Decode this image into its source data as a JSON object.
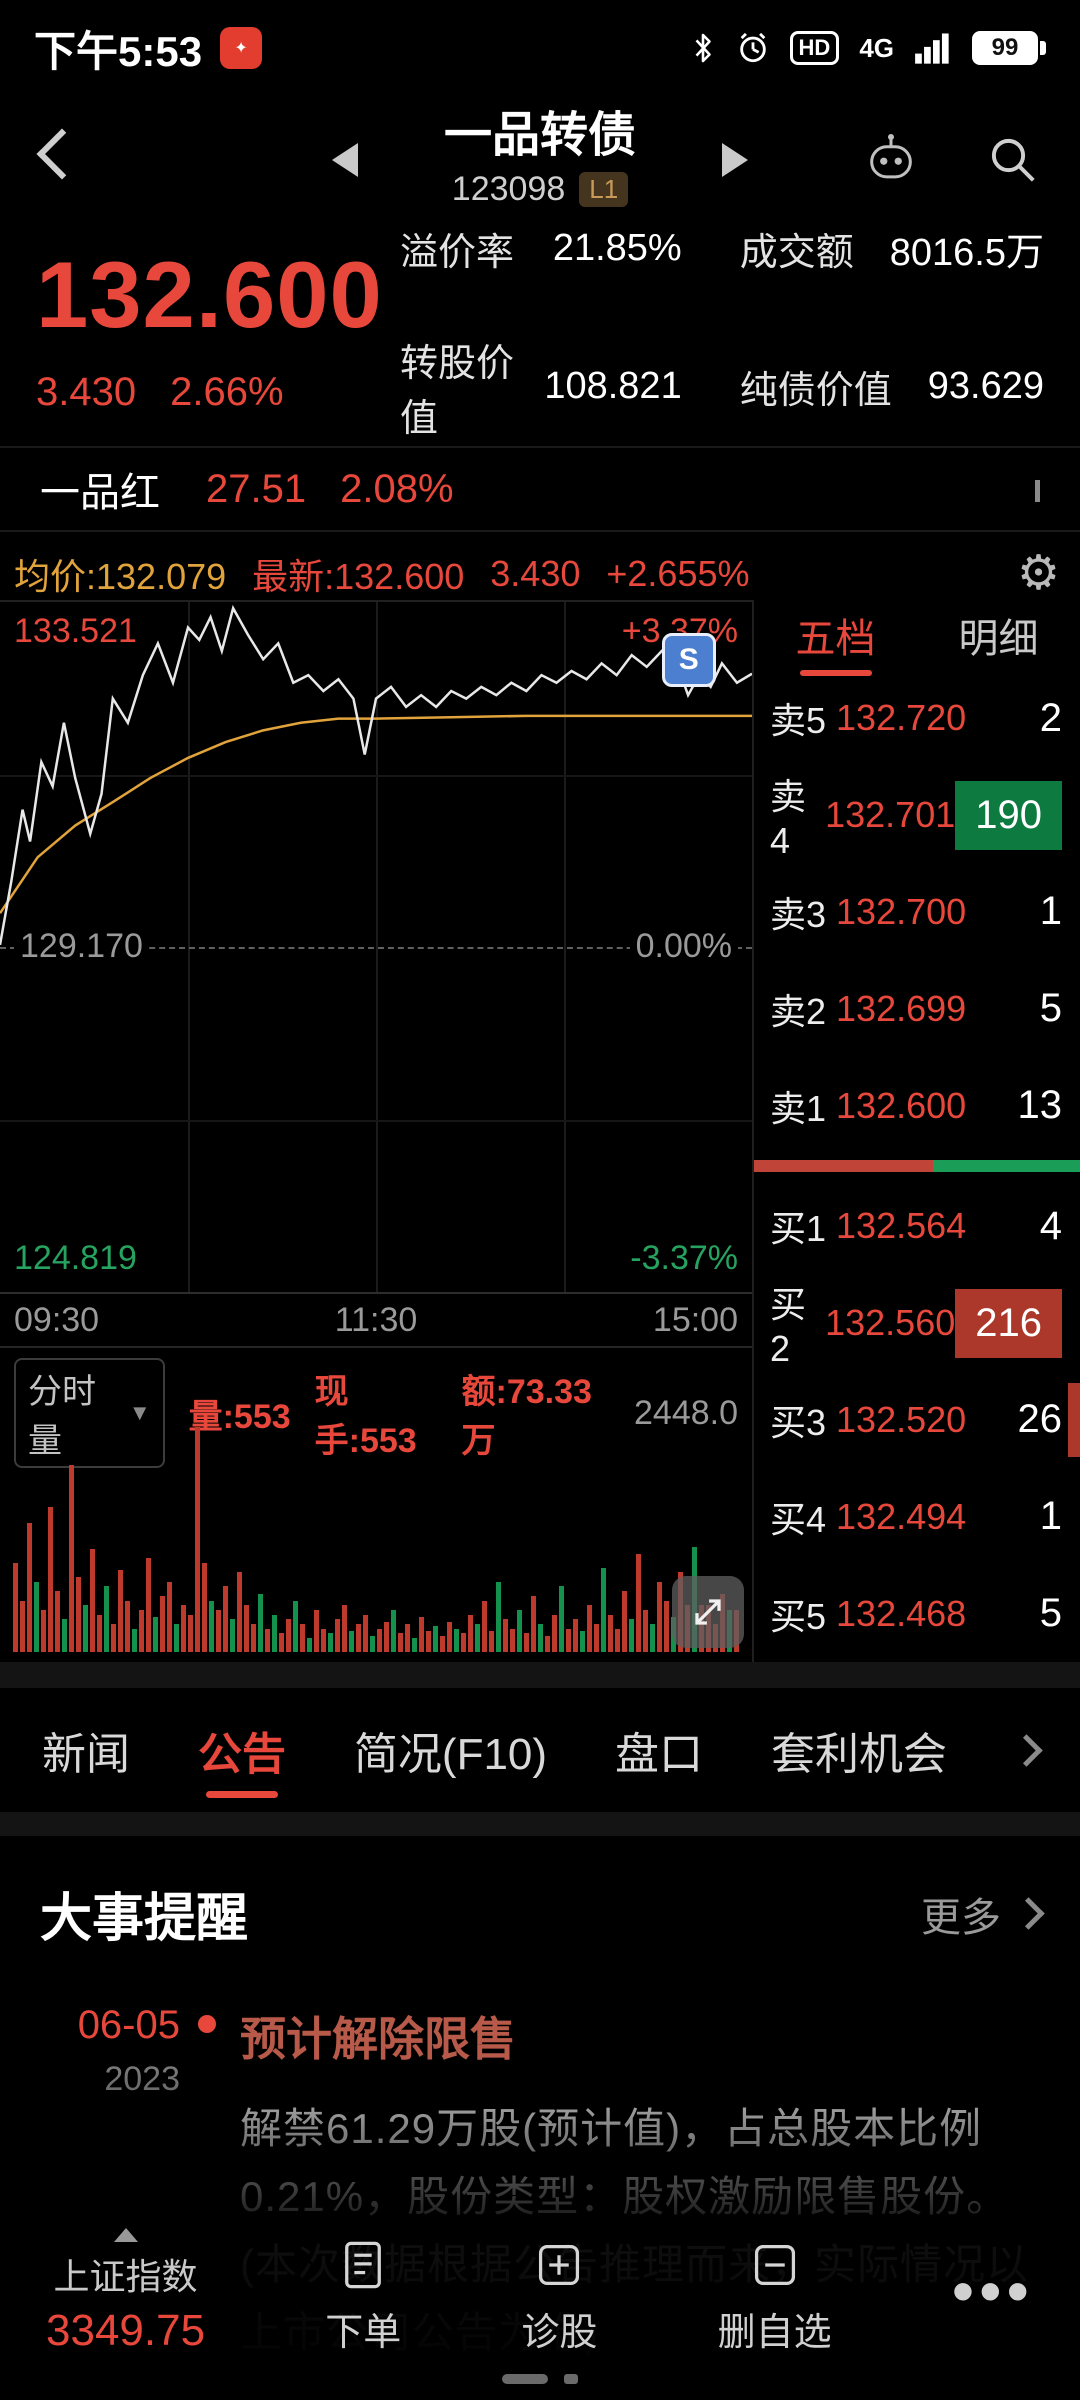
{
  "status_bar": {
    "time": "下午5:53",
    "network": "4G",
    "battery": "99"
  },
  "header": {
    "title": "一品转债",
    "code": "123098",
    "badge": "L1"
  },
  "quote": {
    "price": "132.600",
    "change": "3.430",
    "change_pct": "2.66%",
    "stats": [
      {
        "label": "溢价率",
        "value": "21.85%"
      },
      {
        "label": "成交额",
        "value": "8016.5万"
      },
      {
        "label": "转股价值",
        "value": "108.821"
      },
      {
        "label": "纯债价值",
        "value": "93.629"
      }
    ]
  },
  "related": {
    "name": "一品红",
    "price": "27.51",
    "change_pct": "2.08%"
  },
  "chart": {
    "avg_label": "均价:132.079",
    "latest_label": "最新:132.600",
    "change": "3.430",
    "change_pct": "+2.655%",
    "high": "133.521",
    "high_pct": "+3.37%",
    "mid": "129.170",
    "mid_pct": "0.00%",
    "low": "124.819",
    "low_pct": "-3.37%",
    "times": [
      "09:30",
      "11:30",
      "15:00"
    ],
    "marker": "S",
    "price_points": [
      [
        0,
        49.7
      ],
      [
        1.5,
        40.5
      ],
      [
        3,
        30.1
      ],
      [
        4,
        34.7
      ],
      [
        5.5,
        23.2
      ],
      [
        7,
        26.7
      ],
      [
        8.5,
        17.5
      ],
      [
        10,
        25.5
      ],
      [
        12,
        33.6
      ],
      [
        13.5,
        27.8
      ],
      [
        15,
        14
      ],
      [
        17,
        17.5
      ],
      [
        19,
        10.6
      ],
      [
        21,
        6
      ],
      [
        23,
        11.7
      ],
      [
        25,
        3.7
      ],
      [
        26.5,
        5.5
      ],
      [
        28,
        2.2
      ],
      [
        29.5,
        7.1
      ],
      [
        31,
        0.9
      ],
      [
        33,
        4.8
      ],
      [
        35,
        8.3
      ],
      [
        37,
        6
      ],
      [
        39,
        11.7
      ],
      [
        41,
        10.6
      ],
      [
        43,
        12.9
      ],
      [
        45,
        11.2
      ],
      [
        47,
        14
      ],
      [
        48.5,
        22.1
      ],
      [
        50,
        14
      ],
      [
        52,
        12.3
      ],
      [
        54,
        15.2
      ],
      [
        56,
        13.5
      ],
      [
        58,
        15.2
      ],
      [
        60,
        12.9
      ],
      [
        62,
        14
      ],
      [
        64,
        12.3
      ],
      [
        66,
        13.5
      ],
      [
        68,
        11.7
      ],
      [
        70,
        12.9
      ],
      [
        72,
        10.6
      ],
      [
        74,
        11.7
      ],
      [
        76,
        10
      ],
      [
        78,
        11.2
      ],
      [
        80,
        8.9
      ],
      [
        82,
        10.6
      ],
      [
        84,
        7.7
      ],
      [
        86,
        9.4
      ],
      [
        88,
        7.1
      ],
      [
        90,
        8.9
      ],
      [
        91.5,
        13.5
      ],
      [
        93,
        10.6
      ],
      [
        94.5,
        12.3
      ],
      [
        96,
        8.9
      ],
      [
        98,
        11.7
      ],
      [
        100,
        10.4
      ]
    ],
    "avg_points": [
      [
        0,
        45.1
      ],
      [
        5,
        37
      ],
      [
        10,
        32.4
      ],
      [
        15,
        29
      ],
      [
        20,
        25.5
      ],
      [
        25,
        22.6
      ],
      [
        30,
        20.3
      ],
      [
        35,
        18.6
      ],
      [
        40,
        17.5
      ],
      [
        45,
        16.9
      ],
      [
        50,
        16.9
      ],
      [
        60,
        16.7
      ],
      [
        70,
        16.5
      ],
      [
        80,
        16.5
      ],
      [
        90,
        16.5
      ],
      [
        100,
        16.5
      ]
    ]
  },
  "order_book": {
    "tabs": [
      {
        "label": "五档",
        "active": true
      },
      {
        "label": "明细",
        "active": false
      }
    ],
    "asks": [
      {
        "label": "卖5",
        "price": "132.720",
        "qty": "2"
      },
      {
        "label": "卖4",
        "price": "132.701",
        "qty": "190",
        "hl": "green"
      },
      {
        "label": "卖3",
        "price": "132.700",
        "qty": "1"
      },
      {
        "label": "卖2",
        "price": "132.699",
        "qty": "5"
      },
      {
        "label": "卖1",
        "price": "132.600",
        "qty": "13"
      }
    ],
    "bids": [
      {
        "label": "买1",
        "price": "132.564",
        "qty": "4"
      },
      {
        "label": "买2",
        "price": "132.560",
        "qty": "216",
        "hl": "red"
      },
      {
        "label": "买3",
        "price": "132.520",
        "qty": "26",
        "row_hl": "sliver"
      },
      {
        "label": "买4",
        "price": "132.494",
        "qty": "1"
      },
      {
        "label": "买5",
        "price": "132.468",
        "qty": "5"
      }
    ]
  },
  "volume": {
    "mode": "分时量",
    "vol": "量:553",
    "hand": "现手:553",
    "amount": "额:73.33万",
    "scale": "2448.0",
    "bars": [
      [
        38,
        "r"
      ],
      [
        22,
        "r"
      ],
      [
        55,
        "r"
      ],
      [
        30,
        "g"
      ],
      [
        18,
        "r"
      ],
      [
        62,
        "r"
      ],
      [
        26,
        "r"
      ],
      [
        14,
        "g"
      ],
      [
        80,
        "r"
      ],
      [
        32,
        "r"
      ],
      [
        20,
        "g"
      ],
      [
        44,
        "r"
      ],
      [
        16,
        "r"
      ],
      [
        28,
        "g"
      ],
      [
        12,
        "r"
      ],
      [
        35,
        "r"
      ],
      [
        22,
        "r"
      ],
      [
        10,
        "g"
      ],
      [
        18,
        "r"
      ],
      [
        40,
        "r"
      ],
      [
        15,
        "g"
      ],
      [
        24,
        "r"
      ],
      [
        30,
        "r"
      ],
      [
        12,
        "g"
      ],
      [
        20,
        "r"
      ],
      [
        16,
        "r"
      ],
      [
        96,
        "r"
      ],
      [
        38,
        "r"
      ],
      [
        22,
        "g"
      ],
      [
        18,
        "r"
      ],
      [
        28,
        "r"
      ],
      [
        14,
        "g"
      ],
      [
        34,
        "r"
      ],
      [
        20,
        "r"
      ],
      [
        12,
        "r"
      ],
      [
        25,
        "g"
      ],
      [
        10,
        "r"
      ],
      [
        16,
        "g"
      ],
      [
        8,
        "r"
      ],
      [
        14,
        "r"
      ],
      [
        22,
        "g"
      ],
      [
        12,
        "r"
      ],
      [
        6,
        "g"
      ],
      [
        18,
        "r"
      ],
      [
        10,
        "r"
      ],
      [
        8,
        "g"
      ],
      [
        14,
        "r"
      ],
      [
        20,
        "r"
      ],
      [
        9,
        "g"
      ],
      [
        12,
        "r"
      ],
      [
        16,
        "r"
      ],
      [
        7,
        "g"
      ],
      [
        10,
        "r"
      ],
      [
        13,
        "r"
      ],
      [
        18,
        "g"
      ],
      [
        8,
        "r"
      ],
      [
        12,
        "r"
      ],
      [
        6,
        "g"
      ],
      [
        15,
        "r"
      ],
      [
        9,
        "r"
      ],
      [
        11,
        "g"
      ],
      [
        7,
        "r"
      ],
      [
        13,
        "r"
      ],
      [
        10,
        "g"
      ],
      [
        8,
        "r"
      ],
      [
        16,
        "r"
      ],
      [
        12,
        "g"
      ],
      [
        22,
        "r"
      ],
      [
        9,
        "r"
      ],
      [
        30,
        "g"
      ],
      [
        14,
        "r"
      ],
      [
        10,
        "r"
      ],
      [
        18,
        "g"
      ],
      [
        8,
        "r"
      ],
      [
        24,
        "r"
      ],
      [
        12,
        "g"
      ],
      [
        7,
        "r"
      ],
      [
        16,
        "r"
      ],
      [
        28,
        "g"
      ],
      [
        10,
        "r"
      ],
      [
        14,
        "r"
      ],
      [
        9,
        "g"
      ],
      [
        20,
        "r"
      ],
      [
        12,
        "r"
      ],
      [
        36,
        "g"
      ],
      [
        16,
        "r"
      ],
      [
        10,
        "r"
      ],
      [
        26,
        "r"
      ],
      [
        14,
        "g"
      ],
      [
        42,
        "r"
      ],
      [
        18,
        "r"
      ],
      [
        12,
        "g"
      ],
      [
        30,
        "r"
      ],
      [
        22,
        "r"
      ],
      [
        15,
        "g"
      ],
      [
        34,
        "r"
      ],
      [
        20,
        "r"
      ],
      [
        45,
        "g"
      ],
      [
        20,
        "r"
      ],
      [
        20,
        "r"
      ],
      [
        12,
        "r"
      ],
      [
        25,
        "r"
      ],
      [
        18,
        "g"
      ],
      [
        18,
        "r"
      ]
    ]
  },
  "tabs": {
    "items": [
      {
        "label": "新闻",
        "active": false
      },
      {
        "label": "公告",
        "active": true
      },
      {
        "label": "简况(F10)",
        "active": false
      },
      {
        "label": "盘口",
        "active": false
      },
      {
        "label": "套利机会",
        "active": false
      }
    ]
  },
  "news": {
    "section_title": "大事提醒",
    "more": "更多",
    "item": {
      "date": "06-05",
      "year": "2023",
      "title": "预计解除限售",
      "body": "解禁61.29万股(预计值)，占总股本比例0.21%，股份类型：股权激励限售股份。(本次数据根据公告推理而来，实际情况以上市公司公告为准)"
    }
  },
  "bottom_nav": {
    "index_name": "上证指数",
    "index_value": "3349.75",
    "items": [
      {
        "label": "下单"
      },
      {
        "label": "诊股"
      },
      {
        "label": "删自选"
      }
    ]
  },
  "colors": {
    "accent_red": "#e8483c",
    "green": "#27a360",
    "yellow": "#e1a33b",
    "ask_block": "#0d7a40",
    "bid_block": "#ab382b"
  }
}
